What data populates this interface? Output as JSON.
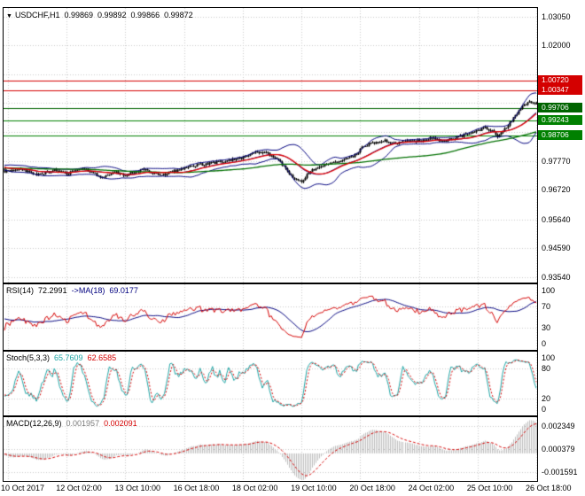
{
  "header": {
    "dropdown_icon": "▼",
    "symbol": "USDCHF,H1",
    "open": "0.99869",
    "high": "0.99892",
    "low": "0.99866",
    "close": "0.99872"
  },
  "time_axis": {
    "labels": [
      "10 Oct 2017",
      "12 Oct 02:00",
      "13 Oct 10:00",
      "16 Oct 18:00",
      "18 Oct 02:00",
      "19 Oct 10:00",
      "20 Oct 18:00",
      "24 Oct 02:00",
      "25 Oct 10:00",
      "26 Oct 18:00"
    ]
  },
  "colors": {
    "background": "#ffffff",
    "grid": "#c9c9c9",
    "panel_border": "#000000",
    "candle": "#000000",
    "bollinger": "#00007f",
    "ma_fast": "#e60000",
    "ma_slow": "#007000",
    "rsi_line": "#d40000",
    "rsi_ma": "#00007f",
    "stoch_k": "#1fa5a5",
    "stoch_d": "#d40000",
    "macd_hist": "#bdbdbd",
    "macd_signal": "#d40000",
    "axis_text": "#000000"
  },
  "chart_data": {
    "type": "candlestick",
    "title": "USDCHF,H1",
    "symbol": "USDCHF",
    "timeframe": "H1",
    "bar_count": 300,
    "prehistory": 100,
    "noise_seed": 9,
    "price_anchors": [
      [
        0,
        0.9738
      ],
      [
        8,
        0.9752
      ],
      [
        18,
        0.9724
      ],
      [
        28,
        0.9744
      ],
      [
        35,
        0.9731
      ],
      [
        45,
        0.9749
      ],
      [
        55,
        0.9717
      ],
      [
        62,
        0.9737
      ],
      [
        68,
        0.9727
      ],
      [
        78,
        0.9746
      ],
      [
        88,
        0.9724
      ],
      [
        95,
        0.9741
      ],
      [
        101,
        0.9752
      ],
      [
        110,
        0.9764
      ],
      [
        120,
        0.9774
      ],
      [
        128,
        0.9781
      ],
      [
        134,
        0.9791
      ],
      [
        140,
        0.9806
      ],
      [
        146,
        0.9812
      ],
      [
        152,
        0.9788
      ],
      [
        158,
        0.975
      ],
      [
        163,
        0.971
      ],
      [
        167,
        0.9701
      ],
      [
        171,
        0.9736
      ],
      [
        178,
        0.9761
      ],
      [
        186,
        0.9773
      ],
      [
        192,
        0.9785
      ],
      [
        196,
        0.9792
      ],
      [
        202,
        0.9832
      ],
      [
        207,
        0.9845
      ],
      [
        214,
        0.985
      ],
      [
        221,
        0.9842
      ],
      [
        228,
        0.9854
      ],
      [
        234,
        0.985
      ],
      [
        240,
        0.9862
      ],
      [
        246,
        0.985
      ],
      [
        252,
        0.986
      ],
      [
        258,
        0.9872
      ],
      [
        262,
        0.988
      ],
      [
        266,
        0.9888
      ],
      [
        270,
        0.9902
      ],
      [
        274,
        0.9886
      ],
      [
        277,
        0.9868
      ],
      [
        281,
        0.9892
      ],
      [
        285,
        0.9925
      ],
      [
        289,
        0.9958
      ],
      [
        292,
        0.998
      ],
      [
        295,
        0.9992
      ],
      [
        299,
        0.9987
      ]
    ],
    "x_tick_indices": [
      2,
      35,
      68,
      101,
      134,
      167,
      200,
      233,
      266,
      299
    ],
    "panels": {
      "main": {
        "y_min": 0.9333,
        "y_max": 1.0337,
        "grid_values": [
          1.0305,
          1.02,
          1.0095,
          0.999,
          0.9885,
          0.9777,
          0.9672,
          0.9564,
          0.9459,
          0.9354
        ],
        "axis_labels": [
          {
            "value": 1.0305,
            "label": "1.03050"
          },
          {
            "value": 1.02,
            "label": "1.02000"
          },
          {
            "value": 0.9777,
            "label": "0.97770"
          },
          {
            "value": 0.9672,
            "label": "0.96720"
          },
          {
            "value": 0.9564,
            "label": "0.95640"
          },
          {
            "value": 0.9459,
            "label": "0.94590"
          },
          {
            "value": 0.9354,
            "label": "0.93540"
          }
        ],
        "levels": [
          {
            "value": 1.0072,
            "label": "1.00720",
            "type": "resistance",
            "color": "#d40000"
          },
          {
            "value": 1.00347,
            "label": "1.00347",
            "type": "resistance",
            "color": "#d40000"
          },
          {
            "value": 0.99706,
            "label": "0.99706",
            "type": "price",
            "color": "#006400"
          },
          {
            "value": 0.99243,
            "label": "0.99243",
            "type": "support",
            "color": "#008000"
          },
          {
            "value": 0.98706,
            "label": "0.98706",
            "type": "support",
            "color": "#008000"
          }
        ],
        "overlays": {
          "bollinger_period": 20,
          "bollinger_deviation": 2,
          "ma_fast_period": 21,
          "ma_slow_period": 89
        }
      },
      "rsi": {
        "name": "RSI(14)",
        "value": "72.2991",
        "ma_name": "->MA(18)",
        "ma_value": "69.0177",
        "period": 14,
        "ma_period": 18,
        "y_min": -12,
        "y_max": 112,
        "grid_values": [
          70,
          30
        ],
        "axis_labels": [
          {
            "value": 100,
            "label": "100"
          },
          {
            "value": 70,
            "label": "70"
          },
          {
            "value": 30,
            "label": "30"
          },
          {
            "value": 0,
            "label": "0"
          }
        ]
      },
      "stoch": {
        "name": "Stoch(5,3,3)",
        "k_value": "65.7609",
        "d_value": "62.6585",
        "k_period": 5,
        "d_period": 3,
        "slowing": 3,
        "y_min": -12,
        "y_max": 112,
        "grid_values": [
          80,
          20
        ],
        "axis_labels": [
          {
            "value": 100,
            "label": "100"
          },
          {
            "value": 80,
            "label": "80"
          },
          {
            "value": 20,
            "label": "20"
          },
          {
            "value": 0,
            "label": "0"
          }
        ]
      },
      "macd": {
        "name": "MACD(12,26,9)",
        "macd_value": "0.001957",
        "signal_value": "0.002091",
        "fast": 12,
        "slow": 26,
        "signal": 9,
        "y_min": -0.00237,
        "y_max": 0.00312,
        "grid_values": [
          0.002349,
          0.000379,
          -0.001591
        ],
        "axis_labels": [
          {
            "value": 0.002349,
            "label": "0.002349"
          },
          {
            "value": 0.000379,
            "label": "0.000379"
          },
          {
            "value": -0.001591,
            "label": "-0.001591"
          }
        ]
      }
    }
  }
}
